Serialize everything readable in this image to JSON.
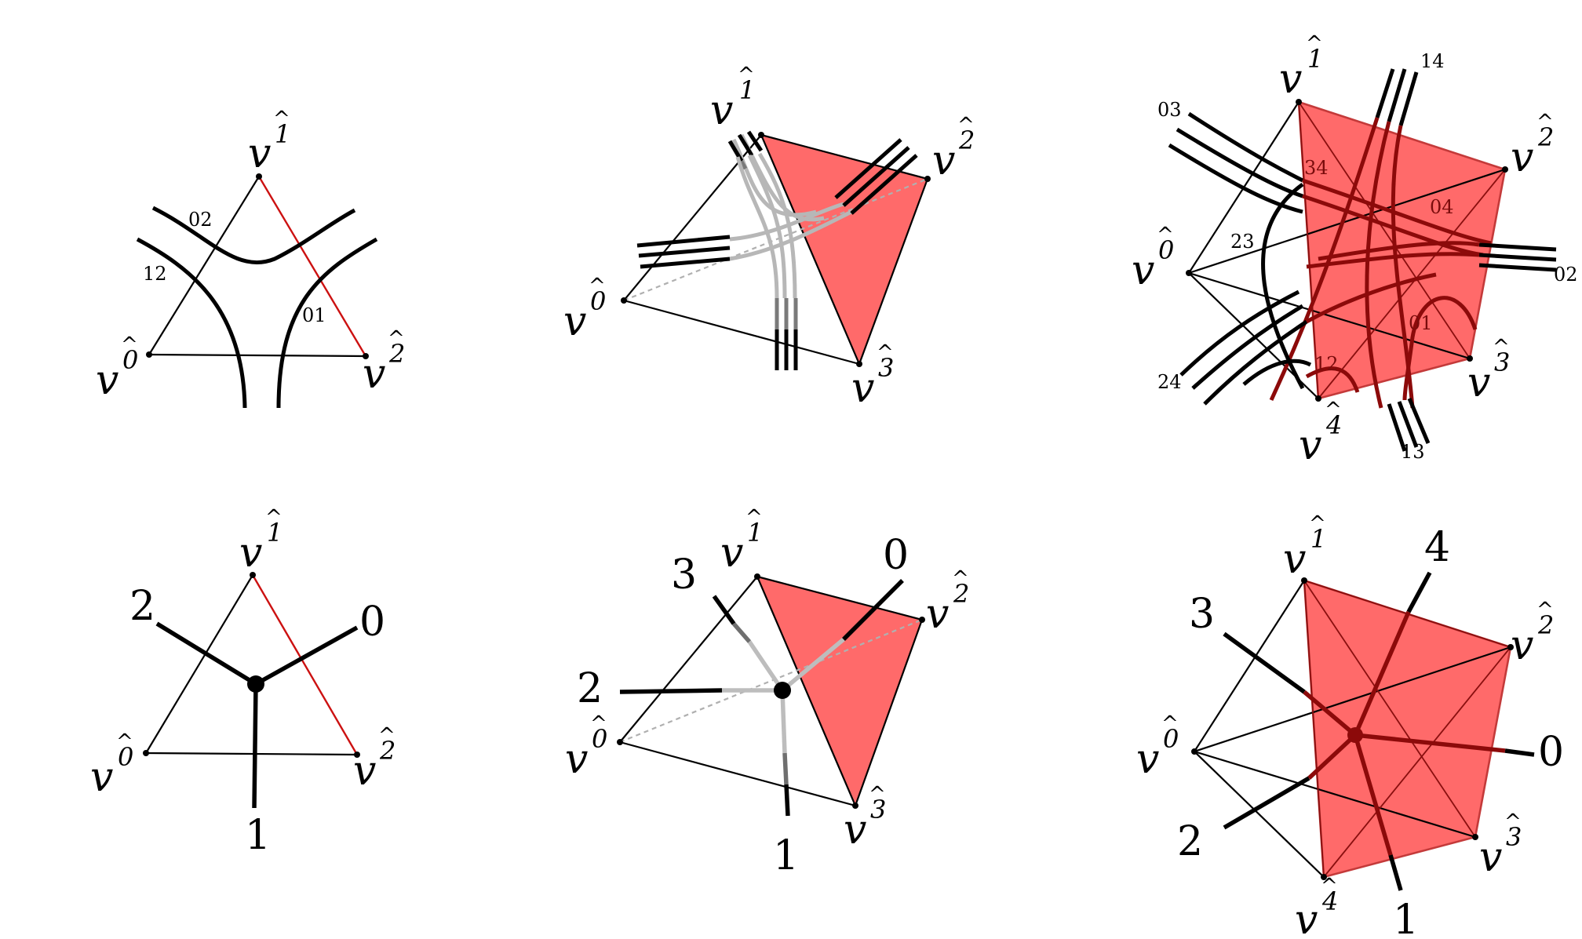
{
  "panels": {
    "triangle_strands": {
      "vertices": [
        "0",
        "1",
        "2"
      ],
      "strand_labels": [
        "02",
        "12",
        "01"
      ]
    },
    "tetra_strands": {
      "vertices": [
        "0",
        "1",
        "2",
        "3"
      ]
    },
    "pentagon_strands": {
      "vertices": [
        "0",
        "1",
        "2",
        "3",
        "4"
      ],
      "strand_labels_outer": [
        "03",
        "14",
        "02",
        "13",
        "24"
      ],
      "strand_labels_inner": [
        "34",
        "04",
        "23",
        "01",
        "12"
      ]
    },
    "triangle_tree": {
      "vertices": [
        "0",
        "1",
        "2"
      ],
      "leg_labels": [
        "2",
        "0",
        "1"
      ]
    },
    "tetra_tree": {
      "vertices": [
        "0",
        "1",
        "2",
        "3"
      ],
      "leg_labels": [
        "3",
        "0",
        "2",
        "1"
      ]
    },
    "pentagon_tree": {
      "vertices": [
        "0",
        "1",
        "2",
        "3",
        "4"
      ],
      "leg_labels": [
        "4",
        "3",
        "0",
        "2",
        "1"
      ]
    }
  },
  "symbols": {
    "vertex_letter": "v",
    "hat": "^"
  },
  "colors": {
    "face_fill": "#ff5a5a",
    "highlight_edge": "#cc1111",
    "ink": "#000000"
  }
}
